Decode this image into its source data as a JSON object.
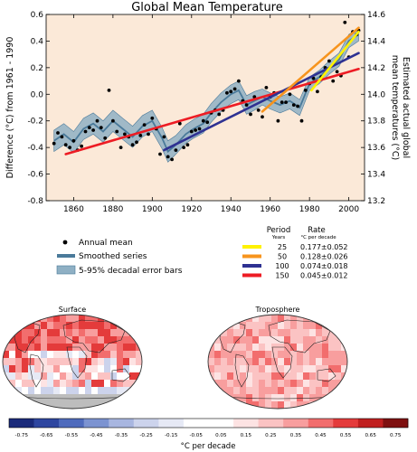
{
  "chart_data": [
    {
      "type": "line",
      "title": "Global Mean Temperature",
      "ylabel": "Difference (°C) from 1961 - 1990",
      "y2label_line1": "Estimated actual global",
      "y2label_line2": "mean temperatures (°C)",
      "xlim": [
        1846,
        2008
      ],
      "ylim": [
        -0.8,
        0.6
      ],
      "y2lim": [
        13.2,
        14.6
      ],
      "x_ticks": [
        "1860",
        "1880",
        "1900",
        "1920",
        "1940",
        "1960",
        "1980",
        "2000"
      ],
      "x_tick_values": [
        1860,
        1880,
        1900,
        1920,
        1940,
        1960,
        1980,
        2000
      ],
      "y_ticks": [
        "-0.8",
        "-0.6",
        "-0.4",
        "-0.2",
        "0.0",
        "0.2",
        "0.4",
        "0.6"
      ],
      "y_tick_values": [
        -0.8,
        -0.6,
        -0.4,
        -0.2,
        0.0,
        0.2,
        0.4,
        0.6
      ],
      "y2_ticks": [
        "13.2",
        "13.4",
        "13.6",
        "13.8",
        "14.0",
        "14.2",
        "14.4",
        "14.6"
      ],
      "y2_tick_values": [
        13.2,
        13.4,
        13.6,
        13.8,
        14.0,
        14.2,
        14.4,
        14.6
      ],
      "smoothed_series": {
        "x": [
          1850,
          1855,
          1860,
          1865,
          1870,
          1875,
          1880,
          1885,
          1890,
          1895,
          1900,
          1905,
          1908,
          1912,
          1917,
          1921,
          1926,
          1930,
          1935,
          1940,
          1944,
          1948,
          1952,
          1956,
          1960,
          1965,
          1970,
          1975,
          1980,
          1985,
          1990,
          1995,
          2000,
          2005
        ],
        "y": [
          -0.35,
          -0.3,
          -0.36,
          -0.26,
          -0.22,
          -0.28,
          -0.2,
          -0.26,
          -0.32,
          -0.24,
          -0.2,
          -0.33,
          -0.43,
          -0.38,
          -0.3,
          -0.26,
          -0.22,
          -0.14,
          -0.06,
          0.0,
          0.03,
          -0.08,
          -0.05,
          -0.02,
          -0.05,
          -0.08,
          -0.05,
          -0.1,
          0.08,
          0.13,
          0.2,
          0.26,
          0.4,
          0.45
        ],
        "error_halfwidth": [
          0.08,
          0.08,
          0.08,
          0.08,
          0.08,
          0.08,
          0.08,
          0.08,
          0.08,
          0.08,
          0.08,
          0.08,
          0.08,
          0.07,
          0.07,
          0.07,
          0.07,
          0.07,
          0.07,
          0.07,
          0.07,
          0.07,
          0.07,
          0.06,
          0.06,
          0.06,
          0.06,
          0.06,
          0.05,
          0.05,
          0.05,
          0.05,
          0.05,
          0.05
        ]
      },
      "annual_mean": {
        "x": [
          1850,
          1852,
          1854,
          1856,
          1858,
          1860,
          1862,
          1864,
          1866,
          1868,
          1870,
          1872,
          1874,
          1876,
          1878,
          1880,
          1882,
          1884,
          1886,
          1888,
          1890,
          1892,
          1894,
          1896,
          1898,
          1900,
          1902,
          1904,
          1906,
          1908,
          1910,
          1912,
          1914,
          1916,
          1918,
          1920,
          1922,
          1924,
          1926,
          1928,
          1930,
          1932,
          1934,
          1936,
          1938,
          1940,
          1942,
          1944,
          1946,
          1948,
          1950,
          1952,
          1954,
          1956,
          1958,
          1960,
          1962,
          1964,
          1966,
          1968,
          1970,
          1972,
          1974,
          1976,
          1978,
          1980,
          1982,
          1984,
          1986,
          1988,
          1990,
          1992,
          1994,
          1996,
          1998,
          2000,
          2002,
          2004,
          2005
        ],
        "y": [
          -0.37,
          -0.29,
          -0.32,
          -0.38,
          -0.4,
          -0.35,
          -0.42,
          -0.39,
          -0.28,
          -0.25,
          -0.27,
          -0.2,
          -0.25,
          -0.33,
          0.03,
          -0.2,
          -0.28,
          -0.4,
          -0.3,
          -0.32,
          -0.38,
          -0.36,
          -0.31,
          -0.23,
          -0.3,
          -0.18,
          -0.26,
          -0.45,
          -0.32,
          -0.47,
          -0.49,
          -0.42,
          -0.22,
          -0.4,
          -0.38,
          -0.28,
          -0.27,
          -0.26,
          -0.2,
          -0.21,
          -0.14,
          -0.12,
          -0.15,
          -0.12,
          0.01,
          0.02,
          0.04,
          0.1,
          -0.05,
          -0.08,
          -0.15,
          -0.02,
          -0.12,
          -0.17,
          0.05,
          -0.02,
          0.01,
          -0.2,
          -0.06,
          -0.06,
          0.0,
          -0.08,
          -0.09,
          -0.2,
          0.03,
          0.08,
          0.12,
          0.02,
          0.13,
          0.2,
          0.25,
          0.1,
          0.17,
          0.14,
          0.54,
          0.28,
          0.47,
          0.45,
          0.48
        ]
      },
      "trend_lines": [
        {
          "years": "25",
          "rate": "0.177±0.052",
          "color": "#fff200",
          "x": [
            1981,
            2005
          ],
          "y": [
            0.03,
            0.47
          ]
        },
        {
          "years": "50",
          "rate": "0.128±0.026",
          "color": "#f7941d",
          "x": [
            1956,
            2005
          ],
          "y": [
            -0.13,
            0.5
          ]
        },
        {
          "years": "100",
          "rate": "0.074±0.018",
          "color": "#2e3192",
          "x": [
            1906,
            2005
          ],
          "y": [
            -0.42,
            0.31
          ]
        },
        {
          "years": "150",
          "rate": "0.045±0.012",
          "color": "#ed1c24",
          "x": [
            1856,
            2005
          ],
          "y": [
            -0.45,
            0.19
          ]
        }
      ]
    },
    {
      "type": "heatmap",
      "panels": [
        "Surface",
        "Troposphere"
      ],
      "colorbar_label": "°C per decade",
      "colorbar_ticks": [
        "-0.75",
        "-0.65",
        "-0.55",
        "-0.45",
        "-0.35",
        "-0.25",
        "-0.15",
        "-0.05",
        "0.05",
        "0.15",
        "0.25",
        "0.35",
        "0.45",
        "0.55",
        "0.65",
        "0.75"
      ],
      "colorbar_colors": [
        "#1a2a7a",
        "#2e46a0",
        "#4f6bbd",
        "#7c93d1",
        "#a8b6e0",
        "#ccd3ec",
        "#e6e9f5",
        "#ffffff",
        "#ffffff",
        "#fde3e3",
        "#fbc3c3",
        "#f89e9e",
        "#f26d6d",
        "#e43b3b",
        "#c01f1f",
        "#7e1010"
      ]
    }
  ],
  "legend": {
    "annual_mean": "Annual mean",
    "smoothed": "Smoothed series",
    "error_bars": "5-95% decadal error bars",
    "period_header": "Period",
    "period_sub": "Years",
    "rate_header": "Rate",
    "rate_sub": "°C  per decade"
  },
  "colors": {
    "plot_bg": "#fbe9d8",
    "smoothed": "#4a7a9a",
    "error_band": "#8fb0c4",
    "land": "#c9c9c9",
    "ocean_base": "#f5d0d0"
  }
}
